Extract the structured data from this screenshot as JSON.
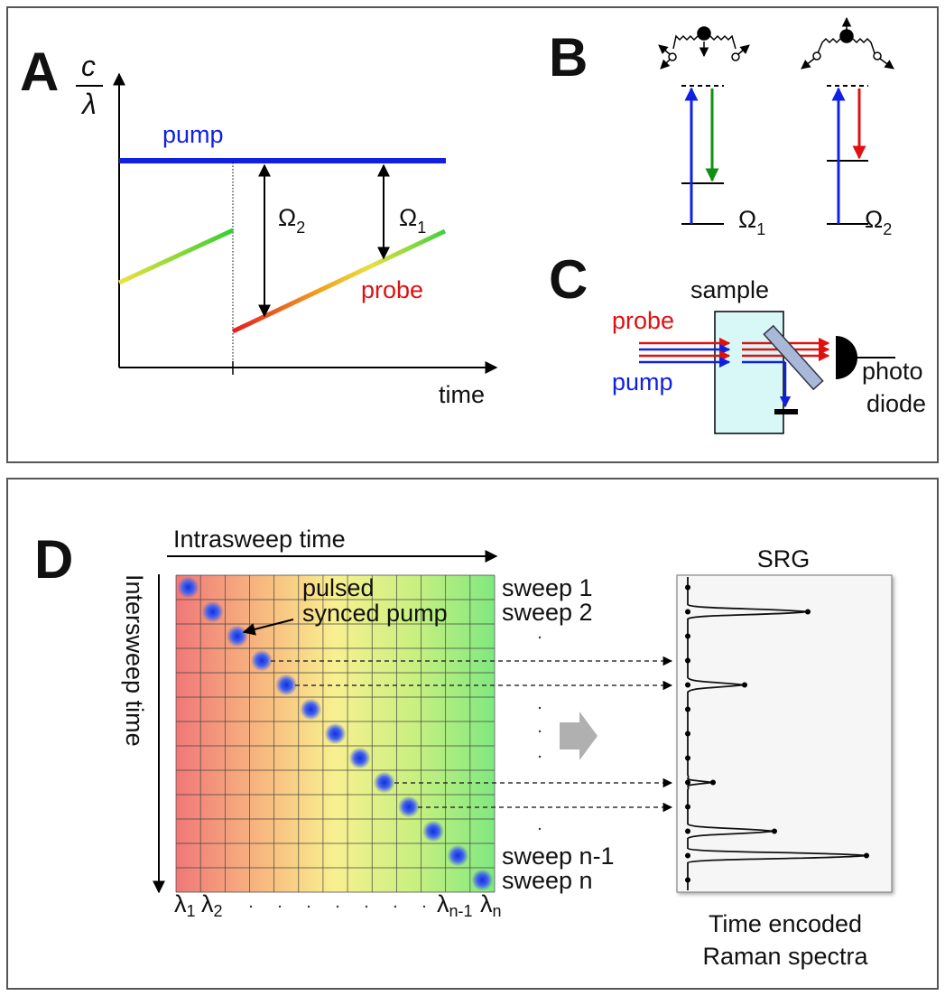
{
  "panels": {
    "A": {
      "letter": "A",
      "y_label_num": "c",
      "y_label_den": "λ",
      "x_label": "time",
      "pump": "pump",
      "probe": "probe",
      "omega2": {
        "symbol": "Ω",
        "sub": "2"
      },
      "omega1": {
        "symbol": "Ω",
        "sub": "1"
      }
    },
    "B": {
      "letter": "B",
      "levels": [
        {
          "symbol": "Ω",
          "sub": "1"
        },
        {
          "symbol": "Ω",
          "sub": "2"
        }
      ]
    },
    "C": {
      "letter": "C",
      "sample": "sample",
      "probe": "probe",
      "pump": "pump",
      "detector": [
        "photo",
        "diode"
      ]
    },
    "D": {
      "letter": "D",
      "x_axis": "Intrasweep time",
      "y_axis": "Intersweep time",
      "annotation": [
        "pulsed",
        "synced pump"
      ],
      "sweeps": [
        "sweep 1",
        "sweep 2",
        "sweep n-1",
        "sweep n"
      ],
      "wavelengths": [
        {
          "symbol": "λ",
          "sub": "1"
        },
        {
          "symbol": "λ",
          "sub": "2"
        },
        {
          "symbol": "λ",
          "sub": "n-1"
        },
        {
          "symbol": "λ",
          "sub": "n"
        }
      ],
      "spectrum_title": "SRG",
      "caption": [
        "Time encoded",
        "Raman spectra"
      ]
    }
  }
}
